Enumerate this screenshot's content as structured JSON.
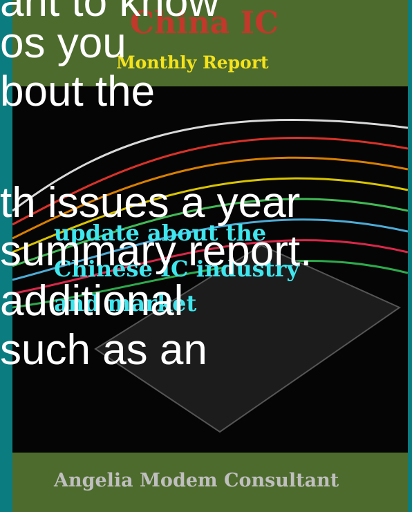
{
  "cover": {
    "title": "China IC",
    "subtitle": "Monthly Report",
    "tagline": [
      "update about the",
      "Chinese IC industry",
      "and market"
    ],
    "author": "Angelia Modem Consultant"
  },
  "overlay_text": [
    "ant to know",
    "os you",
    "bout the",
    "th issues a year",
    "summary report.",
    "additional",
    "such as an"
  ]
}
